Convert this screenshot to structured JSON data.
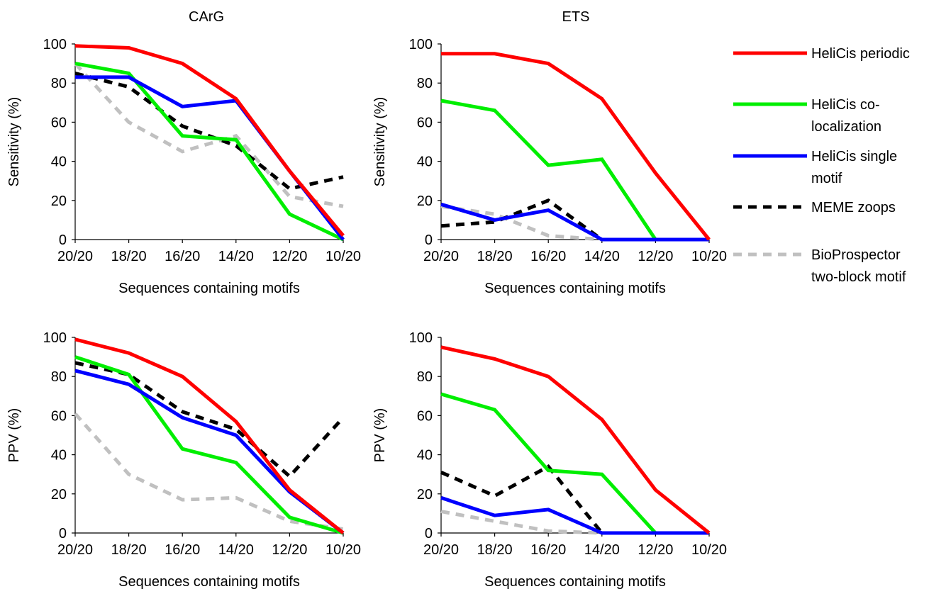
{
  "legend": [
    {
      "key": "periodic",
      "label_lines": [
        "HeliCis periodic"
      ],
      "color": "#ff0000",
      "dash": "solid"
    },
    {
      "key": "coloc",
      "label_lines": [
        "HeliCis co-",
        "localization"
      ],
      "color": "#00ee00",
      "dash": "solid"
    },
    {
      "key": "single",
      "label_lines": [
        "HeliCis single",
        "motif"
      ],
      "color": "#0000ff",
      "dash": "solid"
    },
    {
      "key": "meme",
      "label_lines": [
        "MEME zoops"
      ],
      "color": "#000000",
      "dash": "dashed"
    },
    {
      "key": "bioprospector",
      "label_lines": [
        "BioProspector",
        "two-block motif"
      ],
      "color": "#c0c0c0",
      "dash": "dashed"
    }
  ],
  "chart_data": [
    {
      "type": "line",
      "title": "CArG",
      "xlabel": "Sequences containing motifs",
      "ylabel": "Sensitivity (%)",
      "categories": [
        "20/20",
        "18/20",
        "16/20",
        "14/20",
        "12/20",
        "10/20"
      ],
      "ylim": [
        0,
        100
      ],
      "yticks": [
        "0",
        "20",
        "40",
        "60",
        "80",
        "100"
      ],
      "series": [
        {
          "key": "periodic",
          "values": [
            99,
            98,
            90,
            72,
            35,
            2
          ]
        },
        {
          "key": "coloc",
          "values": [
            90,
            85,
            53,
            51,
            13,
            0
          ]
        },
        {
          "key": "single",
          "values": [
            83,
            83,
            68,
            71,
            35,
            0
          ]
        },
        {
          "key": "meme",
          "values": [
            85,
            78,
            58,
            48,
            26,
            32
          ]
        },
        {
          "key": "bioprospector",
          "values": [
            90,
            60,
            45,
            53,
            22,
            17
          ]
        }
      ]
    },
    {
      "type": "line",
      "title": "ETS",
      "xlabel": "Sequences containing motifs",
      "ylabel": "Sensitivity (%)",
      "categories": [
        "20/20",
        "18/20",
        "16/20",
        "14/20",
        "12/20",
        "10/20"
      ],
      "ylim": [
        0,
        100
      ],
      "yticks": [
        "0",
        "20",
        "40",
        "60",
        "80",
        "100"
      ],
      "series": [
        {
          "key": "periodic",
          "values": [
            95,
            95,
            90,
            72,
            34,
            0
          ]
        },
        {
          "key": "coloc",
          "values": [
            71,
            66,
            38,
            41,
            0,
            0
          ]
        },
        {
          "key": "single",
          "values": [
            18,
            10,
            15,
            0,
            0,
            0
          ]
        },
        {
          "key": "meme",
          "values": [
            7,
            9,
            20,
            0,
            0,
            0
          ]
        },
        {
          "key": "bioprospector",
          "values": [
            17,
            13,
            2,
            0,
            0,
            0
          ]
        }
      ]
    },
    {
      "type": "line",
      "title": "",
      "xlabel": "Sequences containing motifs",
      "ylabel": "PPV (%)",
      "categories": [
        "20/20",
        "18/20",
        "16/20",
        "14/20",
        "12/20",
        "10/20"
      ],
      "ylim": [
        0,
        100
      ],
      "yticks": [
        "0",
        "20",
        "40",
        "60",
        "80",
        "100"
      ],
      "series": [
        {
          "key": "periodic",
          "values": [
            99,
            92,
            80,
            57,
            22,
            0
          ]
        },
        {
          "key": "coloc",
          "values": [
            90,
            81,
            43,
            36,
            8,
            0
          ]
        },
        {
          "key": "single",
          "values": [
            83,
            76,
            59,
            50,
            21,
            0
          ]
        },
        {
          "key": "meme",
          "values": [
            87,
            81,
            62,
            53,
            29,
            59
          ]
        },
        {
          "key": "bioprospector",
          "values": [
            61,
            30,
            17,
            18,
            6,
            2
          ]
        }
      ]
    },
    {
      "type": "line",
      "title": "",
      "xlabel": "Sequences containing motifs",
      "ylabel": "PPV (%)",
      "categories": [
        "20/20",
        "18/20",
        "16/20",
        "14/20",
        "12/20",
        "10/20"
      ],
      "ylim": [
        0,
        100
      ],
      "yticks": [
        "0",
        "20",
        "40",
        "60",
        "80",
        "100"
      ],
      "series": [
        {
          "key": "periodic",
          "values": [
            95,
            89,
            80,
            58,
            22,
            0
          ]
        },
        {
          "key": "coloc",
          "values": [
            71,
            63,
            32,
            30,
            0,
            0
          ]
        },
        {
          "key": "single",
          "values": [
            18,
            9,
            12,
            0,
            0,
            0
          ]
        },
        {
          "key": "meme",
          "values": [
            31,
            19,
            34,
            0,
            0,
            0
          ]
        },
        {
          "key": "bioprospector",
          "values": [
            11,
            6,
            1,
            0,
            0,
            0
          ]
        }
      ]
    }
  ]
}
